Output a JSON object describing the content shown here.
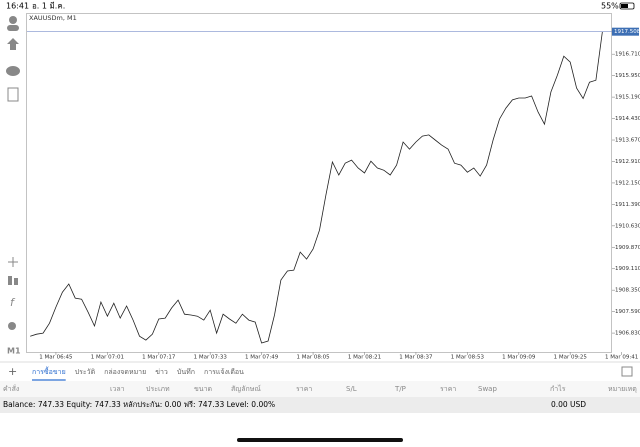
{
  "status_bar": {
    "time": "16:41",
    "date": "อ. 1 มี.ค.",
    "battery": "55%"
  },
  "toolbar": {
    "timeframe": "M1"
  },
  "chart_data": {
    "type": "line",
    "title": "XAUUSDm, M1",
    "color": "#222222",
    "grid": false,
    "x": [
      "1 Mar 06:37",
      "1 Mar 06:39",
      "1 Mar 06:41",
      "1 Mar 06:43",
      "1 Mar 06:45",
      "1 Mar 06:47",
      "1 Mar 06:49",
      "1 Mar 06:51",
      "1 Mar 06:53",
      "1 Mar 06:55",
      "1 Mar 06:57",
      "1 Mar 06:59",
      "1 Mar 07:01",
      "1 Mar 07:03",
      "1 Mar 07:05",
      "1 Mar 07:07",
      "1 Mar 07:09",
      "1 Mar 07:11",
      "1 Mar 07:13",
      "1 Mar 07:15",
      "1 Mar 07:17",
      "1 Mar 07:19",
      "1 Mar 07:21",
      "1 Mar 07:23",
      "1 Mar 07:25",
      "1 Mar 07:27",
      "1 Mar 07:29",
      "1 Mar 07:31",
      "1 Mar 07:33",
      "1 Mar 07:35",
      "1 Mar 07:37",
      "1 Mar 07:39",
      "1 Mar 07:41",
      "1 Mar 07:43",
      "1 Mar 07:45",
      "1 Mar 07:47",
      "1 Mar 07:49",
      "1 Mar 07:51",
      "1 Mar 07:53",
      "1 Mar 07:55",
      "1 Mar 07:57",
      "1 Mar 07:59",
      "1 Mar 08:01",
      "1 Mar 08:03",
      "1 Mar 08:05",
      "1 Mar 08:07",
      "1 Mar 08:09",
      "1 Mar 08:11",
      "1 Mar 08:13",
      "1 Mar 08:15",
      "1 Mar 08:17",
      "1 Mar 08:19",
      "1 Mar 08:21",
      "1 Mar 08:23",
      "1 Mar 08:25",
      "1 Mar 08:27",
      "1 Mar 08:29",
      "1 Mar 08:31",
      "1 Mar 08:33",
      "1 Mar 08:35",
      "1 Mar 08:37",
      "1 Mar 08:39",
      "1 Mar 08:41",
      "1 Mar 08:43",
      "1 Mar 08:45",
      "1 Mar 08:47",
      "1 Mar 08:49",
      "1 Mar 08:51",
      "1 Mar 08:53",
      "1 Mar 08:55",
      "1 Mar 08:57",
      "1 Mar 08:59",
      "1 Mar 09:01",
      "1 Mar 09:03",
      "1 Mar 09:05",
      "1 Mar 09:07",
      "1 Mar 09:09",
      "1 Mar 09:11",
      "1 Mar 09:13",
      "1 Mar 09:15",
      "1 Mar 09:17",
      "1 Mar 09:19",
      "1 Mar 09:21",
      "1 Mar 09:23",
      "1 Mar 09:25",
      "1 Mar 09:27",
      "1 Mar 09:29",
      "1 Mar 09:31",
      "1 Mar 09:33",
      "1 Mar 09:35"
    ],
    "values": [
      1906.72,
      1906.79,
      1906.83,
      1907.18,
      1907.75,
      1908.28,
      1908.57,
      1908.07,
      1908.03,
      1907.57,
      1907.08,
      1907.93,
      1907.43,
      1907.89,
      1907.36,
      1907.79,
      1907.29,
      1906.72,
      1906.58,
      1906.79,
      1907.33,
      1907.36,
      1907.72,
      1908.0,
      1907.5,
      1907.47,
      1907.43,
      1907.29,
      1907.64,
      1906.83,
      1907.5,
      1907.33,
      1907.18,
      1907.5,
      1907.29,
      1907.22,
      1906.48,
      1906.55,
      1907.47,
      1908.71,
      1909.03,
      1909.06,
      1909.7,
      1909.45,
      1909.81,
      1910.48,
      1911.72,
      1912.89,
      1912.43,
      1912.85,
      1912.96,
      1912.68,
      1912.5,
      1912.92,
      1912.68,
      1912.6,
      1912.43,
      1912.78,
      1913.6,
      1913.35,
      1913.6,
      1913.81,
      1913.85,
      1913.67,
      1913.49,
      1913.35,
      1912.85,
      1912.78,
      1912.53,
      1912.68,
      1912.39,
      1912.78,
      1913.67,
      1914.41,
      1914.8,
      1915.09,
      1915.16,
      1915.16,
      1915.23,
      1914.66,
      1914.23,
      1915.37,
      1915.97,
      1916.64,
      1916.43,
      1915.51,
      1915.14,
      1915.72,
      1915.79,
      1917.51
    ],
    "last_price": 1917.508,
    "ylim": [
      1906.16,
      1918.17
    ],
    "yticks": [
      {
        "value": 1906.83,
        "label": "1906.830"
      },
      {
        "value": 1907.59,
        "label": "1907.590"
      },
      {
        "value": 1908.35,
        "label": "1908.350"
      },
      {
        "value": 1909.11,
        "label": "1909.110"
      },
      {
        "value": 1909.87,
        "label": "1909.870"
      },
      {
        "value": 1910.63,
        "label": "1910.630"
      },
      {
        "value": 1911.39,
        "label": "1911.390"
      },
      {
        "value": 1912.15,
        "label": "1912.150"
      },
      {
        "value": 1912.91,
        "label": "1912.910"
      },
      {
        "value": 1913.67,
        "label": "1913.670"
      },
      {
        "value": 1914.43,
        "label": "1914.430"
      },
      {
        "value": 1915.19,
        "label": "1915.190"
      },
      {
        "value": 1915.95,
        "label": "1915.950"
      },
      {
        "value": 1916.71,
        "label": "1916.710"
      }
    ],
    "xlim": [
      "1 Mar 06:36",
      "1 Mar 09:38"
    ],
    "xticks": [
      "1 Mar 06:45",
      "1 Mar 07:01",
      "1 Mar 07:17",
      "1 Mar 07:33",
      "1 Mar 07:49",
      "1 Mar 08:05",
      "1 Mar 08:21",
      "1 Mar 08:37",
      "1 Mar 08:53",
      "1 Mar 09:09",
      "1 Mar 09:25",
      "1 Mar 09:41"
    ]
  },
  "tabs": [
    "การซื้อขาย",
    "ประวัติ",
    "กล่องจดหมาย",
    "ข่าว",
    "บันทึก",
    "การแจ้งเตือน"
  ],
  "table": {
    "columns": [
      "คำสั่ง",
      "เวลา",
      "ประเภท",
      "ขนาด",
      "สัญลักษณ์",
      "ราคา",
      "S/L",
      "T/P",
      "ราคา",
      "Swap",
      "กำไร",
      "หมายเหตุ"
    ]
  },
  "account": {
    "summary": "Balance: 747.33 Equity: 747.33 หลักประกัน: 0.00 ฟรี: 747.33 Level: 0.00%",
    "profit": "0.00",
    "currency": "USD"
  }
}
